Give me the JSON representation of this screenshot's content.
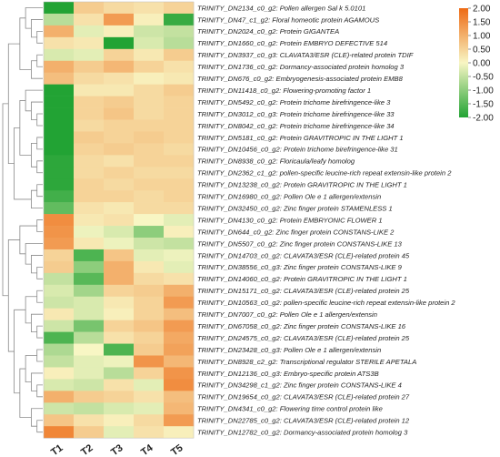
{
  "chart_data": {
    "type": "heatmap",
    "columns": [
      "T1",
      "T2",
      "T3",
      "T4",
      "T5"
    ],
    "rows": [
      "TRINITY_DN2134_c0_g2: Pollen allergen Sal k 5.0101",
      "TRINITY_DN47_c1_g2: Floral homeotic protein AGAMOUS",
      "TRINITY_DN2024_c0_g2: Protein GIGANTEA",
      "TRINITY_DN1660_c0_g2: Protein EMBRYO DEFECTIVE 514",
      "TRINITY_DN3937_c0_g3: CLAVATA3/ESR (CLE)-related protein TDIF",
      "TRINITY_DN1736_c0_g2: Dormancy-associated protein homolog 3",
      "TRINITY_DN676_c0_g2: Embryogenesis-associated protein EMB8",
      "TRINITY_DN11418_c0_g2: Flowering-promoting factor 1",
      "TRINITY_DN5492_c0_g2: Protein trichome birefringence-like 3",
      "TRINITY_DN3012_c0_g3: Protein trichome birefringence-like 33",
      "TRINITY_DN8042_c0_g2: Protein trichome birefringence-like 34",
      "TRINITY_DN5181_c0_g2: Protein GRAVITROPIC IN THE LIGHT 1",
      "TRINITY_DN10456_c0_g2: Protein trichome birefringence-like 31",
      "TRINITY_DN8938_c0_g2: Floricaula/leafy homolog",
      "TRINITY_DN2362_c1_g2: pollen-specific leucine-rich repeat extensin-like protein 2",
      "TRINITY_DN13238_c0_g2: Protein GRAVITROPIC IN THE LIGHT 1",
      "TRINITY_DN16980_c0_g2: Pollen Ole e 1 allergen/extensin",
      "TRINITY_DN32450_c0_g2: Zinc finger protein STAMENLESS 1",
      "TRINITY_DN4130_c0_g2: Protein EMBRYONIC FLOWER 1",
      "TRINITY_DN644_c0_g2: Zinc finger protein CONSTANS-LIKE 2",
      "TRINITY_DN5507_c0_g2: Zinc finger protein CONSTANS-LIKE 13",
      "TRINITY_DN14703_c0_g2: CLAVATA3/ESR (CLE)-related protein 45",
      "TRINITY_DN38556_c0_g3: Zinc finger protein CONSTANS-LIKE 9",
      "TRINITY_DN14060_c0_g2: Protein GRAVITROPIC IN THE LIGHT 1",
      "TRINITY_DN15171_c0_g2: CLAVATA3/ESR (CLE)-related protein 25",
      "TRINITY_DN10563_c0_g2: pollen-specific leucine-rich repeat extensin-like protein 2",
      "TRINITY_DN7007_c0_g2: Pollen Ole e 1 allergen/extensin",
      "TRINITY_DN67058_c0_g2: Zinc finger protein CONSTANS-LIKE 16",
      "TRINITY_DN24575_c0_g2: CLAVATA3/ESR (CLE)-related protein 25",
      "TRINITY_DN23428_c0_g3: Pollen Ole e 1 allergen/extensin",
      "TRINITY_DN8928_c2_g2: Transcriptional regulator STERILE APETALA",
      "TRINITY_DN12136_c0_g3: Embryo-specific protein ATS3B",
      "TRINITY_DN34298_c1_g2: Zinc finger protein CONSTANS-LIKE 4",
      "TRINITY_DN19654_c0_g2: CLAVATA3/ESR (CLE)-related protein 27",
      "TRINITY_DN4341_c0_g2: Flowering time control protein like",
      "TRINITY_DN22785_c0_g2: CLAVATA3/ESR (CLE)-related protein 12",
      "TRINITY_DN12782_c0_g2: Dormancy-associated protein homolog 3"
    ],
    "values": [
      [
        -2.0,
        0.6,
        0.4,
        0.3,
        0.5
      ],
      [
        -0.6,
        0.3,
        1.3,
        0.1,
        -1.8
      ],
      [
        1.0,
        -0.2,
        0.1,
        -0.4,
        -0.5
      ],
      [
        0.3,
        0.2,
        -2.0,
        -0.3,
        -0.6
      ],
      [
        -0.3,
        -0.2,
        0.5,
        0.2,
        0.6
      ],
      [
        1.0,
        0.6,
        0.9,
        0.5,
        0.3
      ],
      [
        0.8,
        0.4,
        0.3,
        0.1,
        0.2
      ],
      [
        -2.0,
        0.2,
        0.2,
        0.4,
        0.6
      ],
      [
        -2.0,
        0.5,
        0.6,
        0.4,
        0.5
      ],
      [
        -2.0,
        0.5,
        0.7,
        0.4,
        0.5
      ],
      [
        -2.0,
        0.4,
        0.5,
        0.5,
        0.5
      ],
      [
        -2.0,
        0.6,
        0.5,
        0.6,
        0.5
      ],
      [
        -2.0,
        0.5,
        0.6,
        0.5,
        0.4
      ],
      [
        -1.9,
        0.4,
        0.3,
        0.5,
        0.5
      ],
      [
        -1.9,
        0.4,
        0.5,
        0.4,
        0.4
      ],
      [
        -1.9,
        0.5,
        0.4,
        0.5,
        0.5
      ],
      [
        -1.7,
        0.5,
        0.5,
        0.4,
        0.5
      ],
      [
        -1.4,
        0.3,
        0.2,
        0.4,
        0.4
      ],
      [
        1.5,
        0.2,
        0.3,
        0.0,
        -0.2
      ],
      [
        1.4,
        -0.1,
        -0.3,
        -1.0,
        0.1
      ],
      [
        1.3,
        0.2,
        -0.1,
        -0.4,
        -0.5
      ],
      [
        0.5,
        -1.6,
        0.7,
        -0.2,
        -0.1
      ],
      [
        0.6,
        -1.0,
        1.0,
        0.2,
        -0.2
      ],
      [
        -0.5,
        -1.5,
        1.0,
        0.4,
        0.3
      ],
      [
        -0.3,
        -0.8,
        0.5,
        0.6,
        1.0
      ],
      [
        -0.4,
        -0.3,
        0.2,
        0.5,
        1.3
      ],
      [
        0.2,
        -0.3,
        0.1,
        0.5,
        0.8
      ],
      [
        -0.4,
        -1.2,
        0.5,
        0.7,
        1.3
      ],
      [
        -1.6,
        -0.6,
        0.3,
        0.5,
        1.1
      ],
      [
        -0.7,
        0.0,
        -1.6,
        0.6,
        1.2
      ],
      [
        -0.5,
        -0.2,
        -0.1,
        1.4,
        0.9
      ],
      [
        0.1,
        -0.2,
        -0.6,
        0.5,
        1.4
      ],
      [
        -0.3,
        -0.4,
        0.3,
        -0.2,
        1.5
      ],
      [
        1.0,
        0.6,
        0.5,
        0.3,
        0.8
      ],
      [
        -0.4,
        -0.5,
        -0.3,
        -0.2,
        0.9
      ],
      [
        0.7,
        0.3,
        0.1,
        0.4,
        1.3
      ],
      [
        1.6,
        0.6,
        -0.2,
        0.3,
        0.1
      ]
    ],
    "colorbar": {
      "ticks": [
        "2.00",
        "1.50",
        "1.00",
        "0.50",
        "0.00",
        "-0.50",
        "-1.00",
        "-1.50",
        "-2.00"
      ],
      "range": [
        -2.0,
        2.0
      ],
      "colors": {
        "low": "#22a334",
        "mid": "#f8f6c4",
        "high": "#ee6a14"
      }
    },
    "dendrogram": "left, row clustering",
    "legend_placement": "top-right"
  }
}
